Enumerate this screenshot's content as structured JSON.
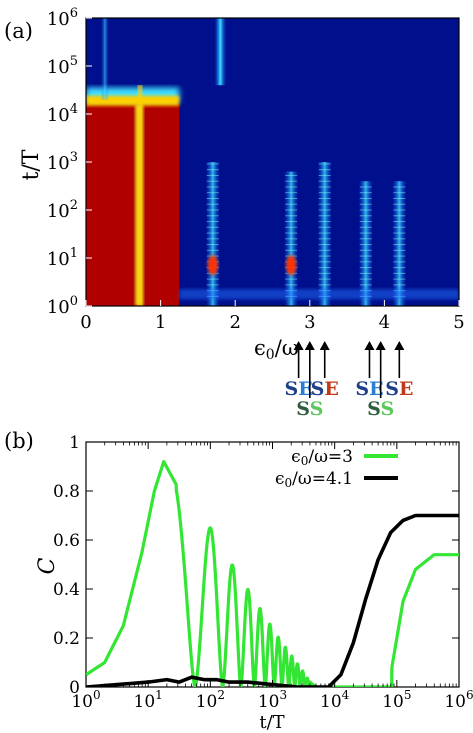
{
  "figure": {
    "panel_a_label": "(a)",
    "panel_b_label": "(b)"
  },
  "panel_a": {
    "ylabel": "t/T",
    "xlabel_eps": "ϵ",
    "xlabel_sub": "0",
    "xlabel_rest": "/ω",
    "x_ticks": [
      "0",
      "1",
      "2",
      "3",
      "4",
      "5"
    ],
    "y_ticks": [
      {
        "base": "10",
        "exp": "0"
      },
      {
        "base": "10",
        "exp": "1"
      },
      {
        "base": "10",
        "exp": "2"
      },
      {
        "base": "10",
        "exp": "3"
      },
      {
        "base": "10",
        "exp": "4"
      },
      {
        "base": "10",
        "exp": "5"
      },
      {
        "base": "10",
        "exp": "6"
      }
    ],
    "annotations": [
      {
        "letters": [
          {
            "t": "S",
            "c": "#1f3f8a"
          },
          {
            "t": "E",
            "c": "#2a7fd4"
          }
        ],
        "row": 1
      },
      {
        "letters": [
          {
            "t": "S",
            "c": "#2e5e3e"
          },
          {
            "t": "S",
            "c": "#5cc85c"
          }
        ],
        "row": 2
      },
      {
        "letters": [
          {
            "t": "S",
            "c": "#1f3f8a"
          },
          {
            "t": "E",
            "c": "#c03a1a"
          }
        ],
        "row": 1
      },
      {
        "letters": [
          {
            "t": "S",
            "c": "#1f3f8a"
          },
          {
            "t": "E",
            "c": "#2a7fd4"
          }
        ],
        "row": 1
      },
      {
        "letters": [
          {
            "t": "S",
            "c": "#2e5e3e"
          },
          {
            "t": "S",
            "c": "#5cc85c"
          }
        ],
        "row": 2
      },
      {
        "letters": [
          {
            "t": "S",
            "c": "#1f3f8a"
          },
          {
            "t": "E",
            "c": "#c03a1a"
          }
        ],
        "row": 1
      }
    ],
    "colors": {
      "bg": "#00108c",
      "hot": "#b00000"
    }
  },
  "chart_data": [
    {
      "type": "heatmap",
      "xlabel": "ϵ0/ω",
      "ylabel": "t/T",
      "xlim": [
        0,
        5
      ],
      "ylim_log10": [
        0,
        6
      ],
      "yscale": "log",
      "features": [
        {
          "kind": "saturated_region",
          "x_range": [
            0,
            1.25
          ],
          "description_values": "red region up to t/T~1e4"
        },
        {
          "kind": "resonance",
          "x": 0.7
        },
        {
          "kind": "resonance",
          "x": 1.7
        },
        {
          "kind": "resonance",
          "x": 2.75
        },
        {
          "kind": "resonance",
          "x": 3.0
        },
        {
          "kind": "resonance",
          "x": 3.2
        },
        {
          "kind": "resonance",
          "x": 3.75
        },
        {
          "kind": "resonance",
          "x": 4.0
        },
        {
          "kind": "resonance",
          "x": 4.2
        }
      ]
    },
    {
      "type": "line",
      "xlabel": "t/T",
      "ylabel": "C",
      "xscale": "log",
      "xlim_log10": [
        0,
        6
      ],
      "ylim": [
        0,
        1
      ],
      "x_ticks": [
        {
          "base": "10",
          "exp": "0"
        },
        {
          "base": "10",
          "exp": "1"
        },
        {
          "base": "10",
          "exp": "2"
        },
        {
          "base": "10",
          "exp": "3"
        },
        {
          "base": "10",
          "exp": "4"
        },
        {
          "base": "10",
          "exp": "5"
        },
        {
          "base": "10",
          "exp": "6"
        }
      ],
      "y_ticks": [
        "0",
        "0.2",
        "0.4",
        "0.6",
        "0.8",
        "1"
      ],
      "legend_position": "top-right",
      "series": [
        {
          "name": "ϵ0/ω=3",
          "legend_eps": "ϵ",
          "legend_sub": "0",
          "legend_rest": "/ω=3",
          "color": "#33e633",
          "envelope_log10t": [
            0.0,
            0.3,
            0.6,
            0.9,
            1.1,
            1.25,
            1.4,
            1.55,
            1.7,
            1.85,
            2.0,
            2.15,
            2.3,
            2.5,
            2.7,
            2.9,
            3.1,
            3.3,
            3.5,
            3.6,
            3.7,
            4.0,
            4.5,
            4.8,
            4.9,
            5.0,
            5.1,
            5.3,
            5.6,
            6.0
          ],
          "envelope_C": [
            0.05,
            0.1,
            0.25,
            0.55,
            0.8,
            0.92,
            0.85,
            0.78,
            0.76,
            0.7,
            0.65,
            0.58,
            0.52,
            0.44,
            0.36,
            0.28,
            0.2,
            0.13,
            0.06,
            0.02,
            0.0,
            0.0,
            0.0,
            0.0,
            0.05,
            0.2,
            0.35,
            0.48,
            0.54,
            0.54
          ]
        },
        {
          "name": "ϵ0/ω=4.1",
          "legend_eps": "ϵ",
          "legend_sub": "0",
          "legend_rest": "/ω=4.1",
          "color": "#000000",
          "x_log10": [
            0.0,
            0.5,
            1.0,
            1.3,
            1.5,
            1.7,
            1.9,
            2.1,
            2.3,
            2.6,
            3.0,
            3.4,
            3.7,
            3.9,
            4.1,
            4.3,
            4.5,
            4.7,
            4.9,
            5.1,
            5.3,
            5.5,
            5.8,
            6.0
          ],
          "values": [
            0.0,
            0.01,
            0.02,
            0.03,
            0.02,
            0.04,
            0.03,
            0.03,
            0.02,
            0.02,
            0.01,
            0.0,
            0.0,
            0.0,
            0.05,
            0.18,
            0.36,
            0.52,
            0.63,
            0.68,
            0.7,
            0.7,
            0.7,
            0.7
          ]
        }
      ]
    }
  ]
}
